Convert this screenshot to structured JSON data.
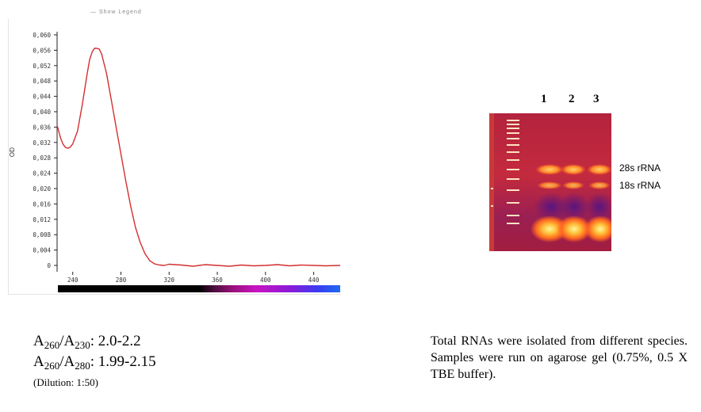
{
  "legend": {
    "text": "— Show Legend"
  },
  "chart_data": {
    "type": "line",
    "xlabel": "",
    "ylabel": "OD",
    "x_ticks": [
      "240",
      "280",
      "320",
      "360",
      "400",
      "440"
    ],
    "y_ticks": [
      "0,060",
      "0,056",
      "0,052",
      "0,048",
      "0,044",
      "0,040",
      "0,036",
      "0,032",
      "0,028",
      "0,024",
      "0,020",
      "0,016",
      "0,012",
      "0,008",
      "0,004",
      "0"
    ],
    "xlim": [
      227,
      462
    ],
    "ylim": [
      0,
      0.06
    ],
    "series": [
      {
        "color": "#d32f2f",
        "x": [
          227,
          230,
          232,
          234,
          236,
          238,
          240,
          244,
          248,
          252,
          254,
          256,
          258,
          260,
          262,
          264,
          268,
          272,
          276,
          280,
          284,
          288,
          292,
          296,
          300,
          304,
          308,
          312,
          316,
          320,
          330,
          340,
          350,
          360,
          370,
          380,
          390,
          400,
          410,
          420,
          430,
          440,
          450,
          462
        ],
        "y": [
          0.0365,
          0.033,
          0.0315,
          0.0307,
          0.0305,
          0.0308,
          0.0316,
          0.035,
          0.042,
          0.05,
          0.0535,
          0.0555,
          0.0565,
          0.0565,
          0.0563,
          0.055,
          0.05,
          0.043,
          0.036,
          0.029,
          0.022,
          0.0155,
          0.01,
          0.006,
          0.003,
          0.0012,
          0.0004,
          0.0001,
          0.0,
          0.0003,
          0.0001,
          -0.0002,
          0.0002,
          0.0,
          -0.0002,
          0.0001,
          -0.0001,
          0.0,
          0.0002,
          -0.0001,
          0.0001,
          0.0,
          -0.0001,
          0.0
        ]
      }
    ]
  },
  "gel": {
    "lane_numbers": [
      "1",
      "2",
      "3"
    ],
    "bands": [
      "28s rRNA",
      "18s rRNA"
    ]
  },
  "ratios": {
    "a260_230": {
      "a1": "A",
      "s1": "260",
      "slash": "/A",
      "s2": "230",
      "value": ": 2.0-2.2"
    },
    "a260_280": {
      "a1": "A",
      "s1": "260",
      "slash": "/A",
      "s2": "280",
      "value": ": 1.99-2.15"
    },
    "dilution": "(Dilution: 1:50)"
  },
  "caption": "Total RNAs were isolated from different species. Samples were run on agarose gel (0.75%, 0.5 X TBE buffer)."
}
